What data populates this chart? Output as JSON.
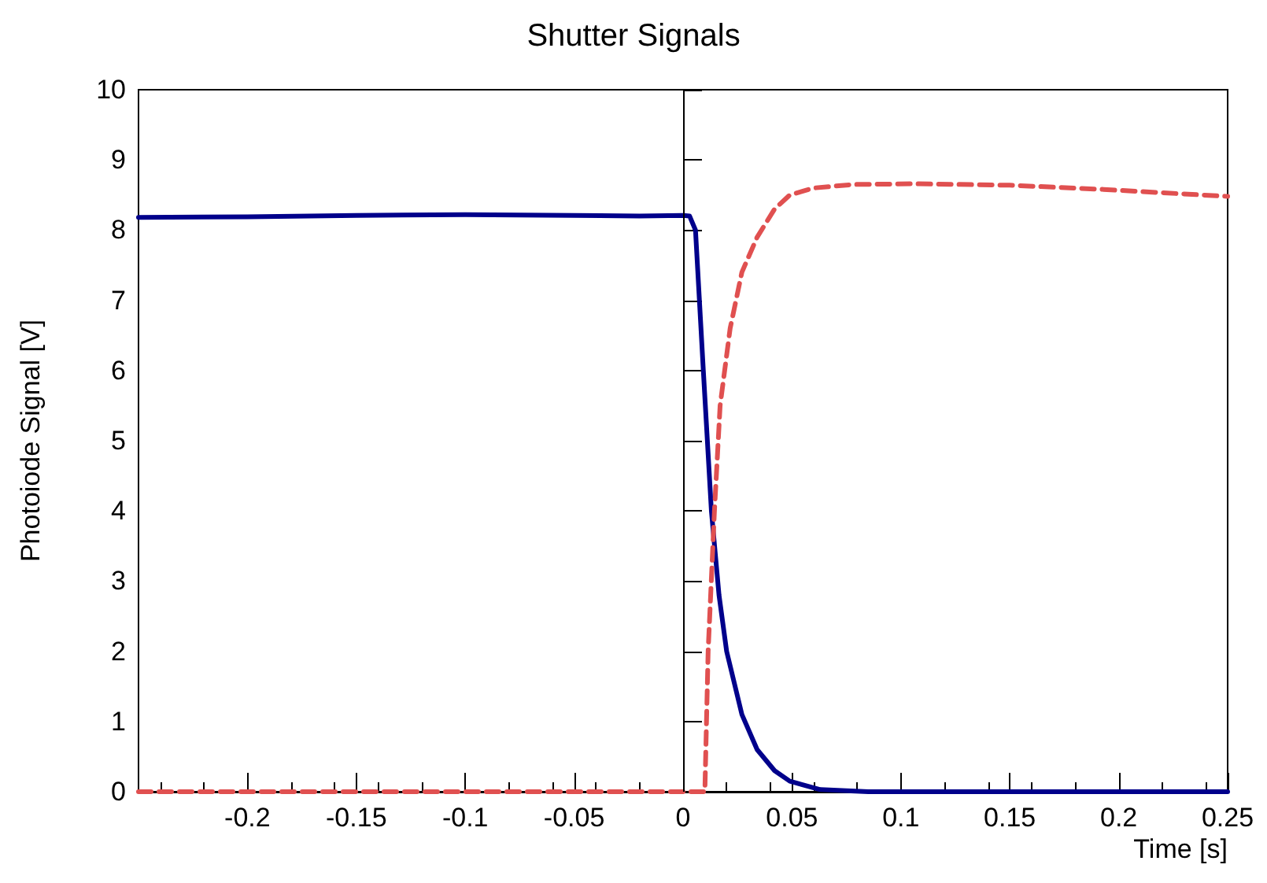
{
  "chart_data": {
    "type": "line",
    "title": "Shutter Signals",
    "xlabel": "Time [s]",
    "ylabel": "Photoiode Signal [V]",
    "xlim": [
      -0.25,
      0.25
    ],
    "xticks": [
      -0.2,
      -0.15,
      -0.1,
      -0.05,
      0,
      0.05,
      0.1,
      0.15,
      0.2,
      0.25
    ],
    "ylim": [
      0,
      10
    ],
    "yticks": [
      0,
      1,
      2,
      3,
      4,
      5,
      6,
      7,
      8,
      9,
      10
    ],
    "grid": false,
    "marker": "none",
    "ref_lines": [
      {
        "axis": "x",
        "value": 0,
        "color": "#000000"
      }
    ],
    "series": [
      {
        "color": "#00008b",
        "line_style": "solid",
        "x": [
          -0.25,
          -0.2,
          -0.15,
          -0.1,
          -0.05,
          -0.02,
          0,
          0.003,
          0.0057,
          0.0093,
          0.013,
          0.0165,
          0.02,
          0.027,
          0.034,
          0.042,
          0.049,
          0.063,
          0.085,
          0.15,
          0.25
        ],
        "values": [
          8.18,
          8.19,
          8.21,
          8.22,
          8.21,
          8.2,
          8.21,
          8.2,
          8.0,
          6.0,
          4.0,
          2.8,
          2.0,
          1.1,
          0.6,
          0.3,
          0.15,
          0.03,
          0,
          0,
          0
        ]
      },
      {
        "color": "#e05050",
        "line_style": "dashed",
        "x": [
          -0.25,
          -0.1,
          0,
          0.01,
          0.0115,
          0.0144,
          0.017,
          0.0216,
          0.027,
          0.034,
          0.042,
          0.049,
          0.06,
          0.078,
          0.106,
          0.15,
          0.193,
          0.25
        ],
        "values": [
          0,
          0,
          0,
          0,
          2,
          4,
          5.5,
          6.6,
          7.4,
          7.9,
          8.3,
          8.5,
          8.6,
          8.65,
          8.66,
          8.64,
          8.58,
          8.48
        ]
      }
    ]
  }
}
